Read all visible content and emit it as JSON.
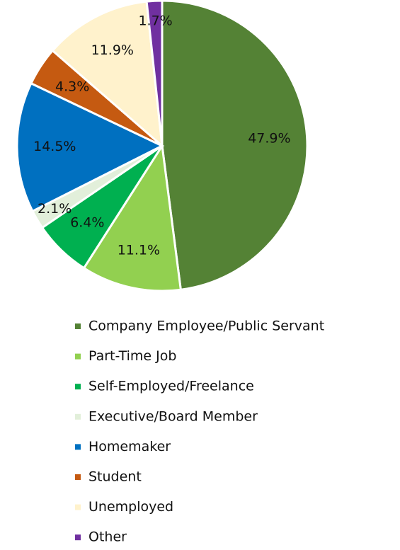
{
  "chart_data": {
    "type": "pie",
    "categories": [
      "Company Employee/Public Servant",
      "Part-Time Job",
      "Self-Employed/Freelance",
      "Executive/Board Member",
      "Homemaker",
      "Student",
      "Unemployed",
      "Other"
    ],
    "values": [
      47.9,
      11.1,
      6.4,
      2.1,
      14.5,
      4.3,
      11.9,
      1.7
    ],
    "value_labels": [
      "47.9%",
      "11.1%",
      "6.4%",
      "2.1%",
      "14.5%",
      "4.3%",
      "11.9%",
      "1.7%"
    ],
    "colors": [
      "#548235",
      "#92d050",
      "#00b050",
      "#e2efda",
      "#0070c0",
      "#c55a11",
      "#fff2cc",
      "#7030a0"
    ],
    "legend": "bottom"
  }
}
